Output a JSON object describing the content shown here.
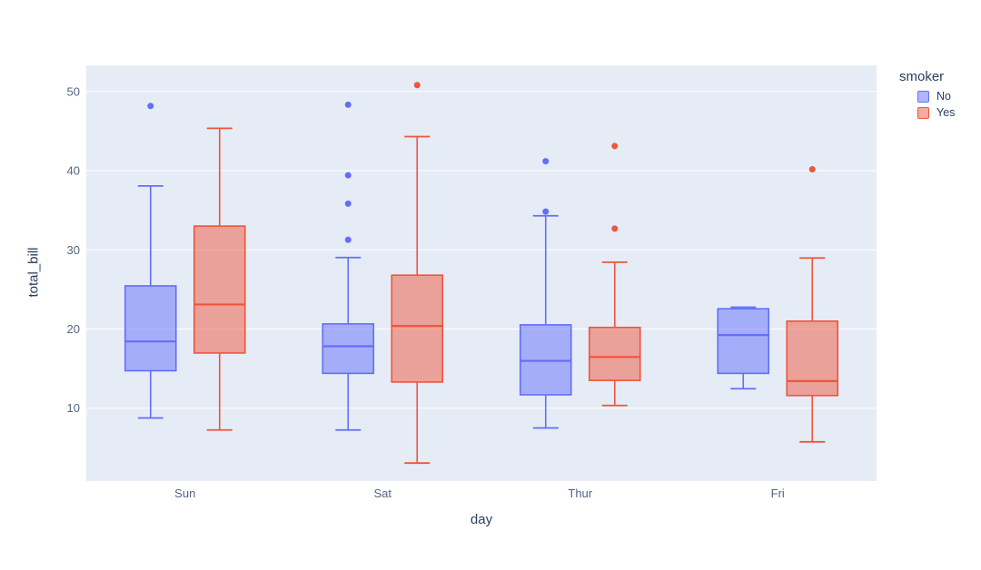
{
  "chart_data": {
    "type": "box",
    "title": "",
    "xlabel": "day",
    "ylabel": "total_bill",
    "categories": [
      "Sun",
      "Sat",
      "Thur",
      "Fri"
    ],
    "yticks": [
      10,
      20,
      30,
      40,
      50
    ],
    "ylim": [
      0.8,
      53.3
    ],
    "grid": true,
    "legend": {
      "title": "smoker",
      "position": "top-right",
      "entries": [
        {
          "label": "No",
          "color": "#636efa"
        },
        {
          "label": "Yes",
          "color": "#EF553B"
        }
      ]
    },
    "series": [
      {
        "name": "No",
        "color": "#636efa",
        "boxes": [
          {
            "category": "Sun",
            "low": 8.77,
            "q1": 14.73,
            "median": 18.43,
            "q3": 25.45,
            "high": 38.07,
            "outliers": [
              48.17
            ]
          },
          {
            "category": "Sat",
            "low": 7.25,
            "q1": 14.4,
            "median": 17.82,
            "q3": 20.65,
            "high": 29.03,
            "outliers": [
              31.27,
              35.83,
              39.42,
              48.33
            ]
          },
          {
            "category": "Thur",
            "low": 7.51,
            "q1": 11.69,
            "median": 15.98,
            "q3": 20.53,
            "high": 34.3,
            "outliers": [
              34.83,
              41.19
            ]
          },
          {
            "category": "Fri",
            "low": 12.46,
            "q1": 14.4,
            "median": 19.24,
            "q3": 22.56,
            "high": 22.75,
            "outliers": []
          }
        ]
      },
      {
        "name": "Yes",
        "color": "#EF553B",
        "boxes": [
          {
            "category": "Sun",
            "low": 7.25,
            "q1": 16.97,
            "median": 23.1,
            "q3": 33.0,
            "high": 45.35,
            "outliers": []
          },
          {
            "category": "Sat",
            "low": 3.07,
            "q1": 13.3,
            "median": 20.39,
            "q3": 26.8,
            "high": 44.3,
            "outliers": [
              50.81
            ]
          },
          {
            "category": "Thur",
            "low": 10.34,
            "q1": 13.51,
            "median": 16.47,
            "q3": 20.2,
            "high": 28.44,
            "outliers": [
              32.68,
              43.11
            ]
          },
          {
            "category": "Fri",
            "low": 5.75,
            "q1": 11.6,
            "median": 13.42,
            "q3": 21.0,
            "high": 28.97,
            "outliers": [
              40.17
            ]
          }
        ]
      }
    ],
    "colors": {
      "plot_background": "#e5ecf6",
      "gridline": "#ffffff",
      "tick_text": "#546480",
      "axis_title_text": "#2a3f5f",
      "fill_opacity": 0.5
    }
  }
}
